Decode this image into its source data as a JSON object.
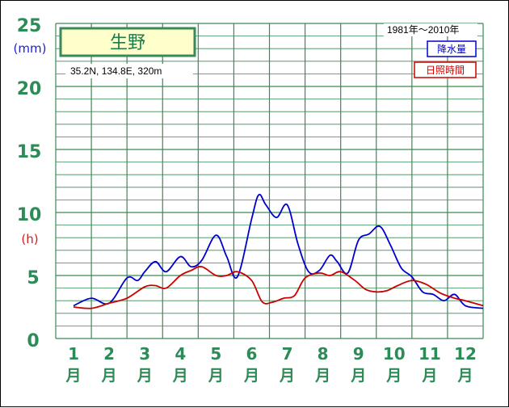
{
  "chart_data": {
    "type": "line",
    "title": "生野",
    "period": "1981年〜2010年",
    "location": "35.2N, 134.8E, 320m",
    "y_ticks": [
      "0",
      "5",
      "10",
      "15",
      "20",
      "25"
    ],
    "unit_precip": "(mm)",
    "unit_sun": "(h)",
    "ylim": [
      0,
      25
    ],
    "months": [
      "1",
      "2",
      "3",
      "4",
      "5",
      "6",
      "7",
      "8",
      "9",
      "10",
      "11",
      "12"
    ],
    "month_suffix": "月",
    "grid": true,
    "legend_placement": "top-right",
    "series": [
      {
        "name": "降水量",
        "color": "#0000cc",
        "x": [
          1.0,
          1.5,
          2.0,
          2.5,
          2.8,
          3.0,
          3.3,
          3.6,
          4.0,
          4.3,
          4.6,
          5.0,
          5.3,
          5.6,
          6.0,
          6.2,
          6.4,
          6.7,
          7.0,
          7.3,
          7.6,
          7.9,
          8.2,
          8.4,
          8.7,
          9.0,
          9.3,
          9.6,
          9.9,
          10.2,
          10.5,
          10.8,
          11.1,
          11.4,
          11.7,
          12.0,
          12.5
        ],
        "values": [
          2.6,
          3.2,
          2.8,
          4.8,
          4.6,
          5.3,
          6.1,
          5.3,
          6.5,
          5.7,
          6.2,
          8.2,
          6.5,
          4.9,
          9.5,
          11.4,
          10.6,
          9.6,
          10.6,
          7.5,
          5.3,
          5.4,
          6.6,
          6.1,
          5.2,
          7.8,
          8.3,
          8.9,
          7.4,
          5.6,
          4.9,
          3.7,
          3.5,
          3.0,
          3.5,
          2.6,
          2.4
        ]
      },
      {
        "name": "日照時間",
        "color": "#cc0000",
        "x": [
          1.0,
          1.5,
          2.0,
          2.5,
          3.0,
          3.3,
          3.6,
          4.0,
          4.3,
          4.6,
          5.0,
          5.3,
          5.6,
          6.0,
          6.3,
          6.6,
          6.9,
          7.2,
          7.5,
          7.9,
          8.2,
          8.5,
          8.9,
          9.2,
          9.5,
          9.8,
          10.1,
          10.5,
          10.9,
          11.3,
          11.7,
          12.0,
          12.5
        ],
        "values": [
          2.5,
          2.4,
          2.8,
          3.2,
          4.1,
          4.2,
          4.0,
          5.0,
          5.4,
          5.7,
          5.0,
          5.0,
          5.3,
          4.6,
          2.9,
          2.9,
          3.2,
          3.4,
          4.8,
          5.2,
          5.0,
          5.3,
          4.6,
          3.9,
          3.7,
          3.8,
          4.2,
          4.6,
          4.3,
          3.6,
          3.2,
          3.0,
          2.6
        ]
      }
    ]
  }
}
